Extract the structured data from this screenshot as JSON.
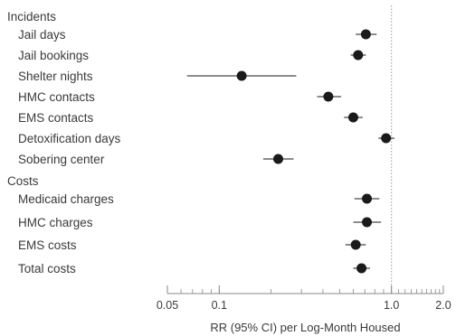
{
  "chart_data": {
    "type": "scatter",
    "subtype": "forest-plot",
    "xlabel": "RR (95% CI) per Log-Month Housed",
    "xscale": "log",
    "xlim": [
      0.05,
      2.0
    ],
    "xticks": [
      0.05,
      0.1,
      1.0,
      2.0
    ],
    "xtick_labels": [
      "0.05",
      "0.1",
      "1.0",
      "2.0"
    ],
    "reference_line": 1.0,
    "grid": false,
    "groups": [
      {
        "name": "Incidents",
        "rows": [
          {
            "label": "Jail days",
            "estimate": 0.71,
            "lower": 0.62,
            "upper": 0.82
          },
          {
            "label": "Jail bookings",
            "estimate": 0.64,
            "lower": 0.58,
            "upper": 0.71
          },
          {
            "label": "Shelter nights",
            "estimate": 0.135,
            "lower": 0.065,
            "upper": 0.28
          },
          {
            "label": "HMC contacts",
            "estimate": 0.43,
            "lower": 0.37,
            "upper": 0.51
          },
          {
            "label": "EMS contacts",
            "estimate": 0.6,
            "lower": 0.53,
            "upper": 0.68
          },
          {
            "label": "Detoxification days",
            "estimate": 0.93,
            "lower": 0.84,
            "upper": 1.04
          },
          {
            "label": "Sobering center",
            "estimate": 0.22,
            "lower": 0.18,
            "upper": 0.27
          }
        ]
      },
      {
        "name": "Costs",
        "rows": [
          {
            "label": "Medicaid charges",
            "estimate": 0.72,
            "lower": 0.61,
            "upper": 0.85
          },
          {
            "label": "HMC charges",
            "estimate": 0.72,
            "lower": 0.6,
            "upper": 0.87
          },
          {
            "label": "EMS costs",
            "estimate": 0.62,
            "lower": 0.54,
            "upper": 0.71
          },
          {
            "label": "Total costs",
            "estimate": 0.67,
            "lower": 0.6,
            "upper": 0.75
          }
        ]
      }
    ],
    "colors": {
      "marker": "#1a1a1a",
      "line": "#1a1a1a",
      "text": "#3a3a3a",
      "axis": "#888888",
      "reference": "#9a9a9a"
    }
  }
}
